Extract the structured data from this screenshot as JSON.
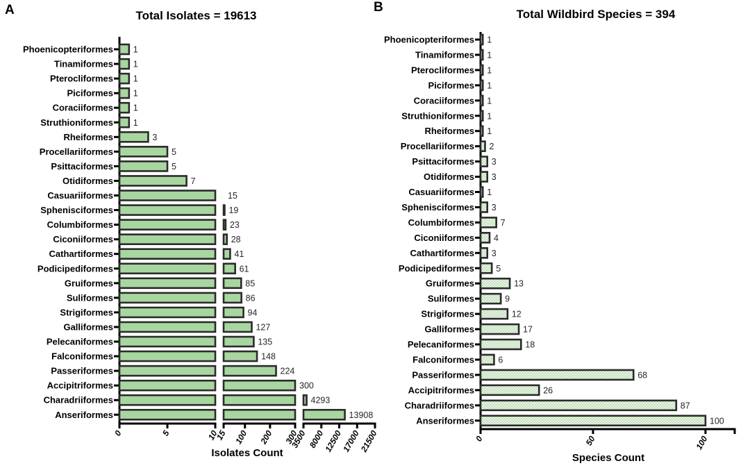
{
  "figure": {
    "colors": {
      "background": "#ffffff",
      "bar_fill": "#a8d6a0",
      "bar_pattern_base": "#e8f3e5",
      "bar_pattern_dot": "#b6dcaf",
      "bar_stroke": "#2b2b2b",
      "axis_color": "#000000",
      "text_color": "#000000",
      "value_label_color": "#262626"
    }
  },
  "chart_data": [
    {
      "type": "bar",
      "orientation": "horizontal",
      "panel_label": "A",
      "title": "Total Isolates = 19613",
      "xlabel": "Isolates Count",
      "ylabel": "",
      "total": 19613,
      "bar_style": "solid",
      "axis_break": true,
      "x_segments": [
        {
          "range": [
            0,
            10
          ],
          "ticks": [
            0,
            5,
            10
          ]
        },
        {
          "range": [
            15,
            300
          ],
          "ticks": [
            15,
            100,
            200,
            300
          ]
        },
        {
          "range": [
            3500,
            21500
          ],
          "ticks": [
            3500,
            8000,
            12500,
            17000,
            21500
          ]
        }
      ],
      "categories": [
        "Phoenicopteriformes",
        "Tinamiformes",
        "Pterocliformes",
        "Piciformes",
        "Coraciiformes",
        "Struthioniformes",
        "Rheiformes",
        "Procellariiformes",
        "Psittaciformes",
        "Otidiformes",
        "Casuariiformes",
        "Sphenisciformes",
        "Columbiformes",
        "Ciconiiformes",
        "Cathartiformes",
        "Podicipediformes",
        "Gruiformes",
        "Suliformes",
        "Strigiformes",
        "Galliformes",
        "Pelecaniformes",
        "Falconiformes",
        "Passeriformes",
        "Accipitriformes",
        "Charadriiformes",
        "Anseriformes"
      ],
      "values": [
        1,
        1,
        1,
        1,
        1,
        1,
        3,
        5,
        5,
        7,
        15,
        19,
        23,
        28,
        41,
        61,
        85,
        86,
        94,
        127,
        135,
        148,
        224,
        300,
        4293,
        13908
      ]
    },
    {
      "type": "bar",
      "orientation": "horizontal",
      "panel_label": "B",
      "title": "Total Wildbird Species = 394",
      "xlabel": "Species Count",
      "ylabel": "",
      "total": 394,
      "bar_style": "dotted",
      "axis_break": false,
      "x_segments": [
        {
          "range": [
            0,
            113
          ],
          "ticks": [
            0,
            50,
            100
          ]
        }
      ],
      "categories": [
        "Phoenicopteriformes",
        "Tinamiformes",
        "Pterocliformes",
        "Piciformes",
        "Coraciiformes",
        "Struthioniformes",
        "Rheiformes",
        "Procellariiformes",
        "Psittaciformes",
        "Otidiformes",
        "Casuariiformes",
        "Sphenisciformes",
        "Columbiformes",
        "Ciconiiformes",
        "Cathartiformes",
        "Podicipediformes",
        "Gruiformes",
        "Suliformes",
        "Strigiformes",
        "Galliformes",
        "Pelecaniformes",
        "Falconiformes",
        "Passeriformes",
        "Accipitriformes",
        "Charadriiformes",
        "Anseriformes"
      ],
      "values": [
        1,
        1,
        1,
        1,
        1,
        1,
        1,
        2,
        3,
        3,
        1,
        3,
        7,
        4,
        3,
        5,
        13,
        9,
        12,
        17,
        18,
        6,
        68,
        26,
        87,
        100
      ]
    }
  ]
}
